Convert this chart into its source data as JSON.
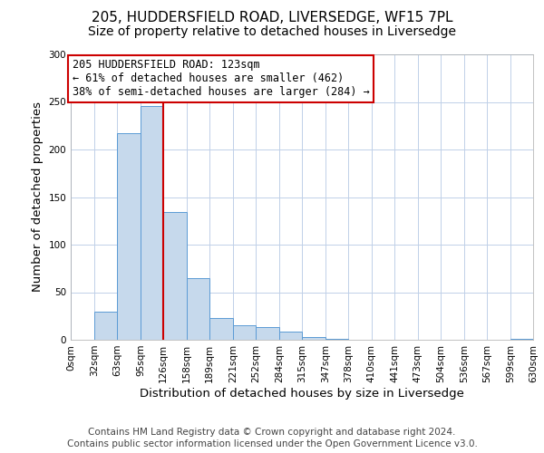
{
  "title": "205, HUDDERSFIELD ROAD, LIVERSEDGE, WF15 7PL",
  "subtitle": "Size of property relative to detached houses in Liversedge",
  "xlabel": "Distribution of detached houses by size in Liversedge",
  "ylabel": "Number of detached properties",
  "footer_line1": "Contains HM Land Registry data © Crown copyright and database right 2024.",
  "footer_line2": "Contains public sector information licensed under the Open Government Licence v3.0.",
  "bin_edges": [
    0,
    32,
    63,
    95,
    126,
    158,
    189,
    221,
    252,
    284,
    315,
    347,
    378,
    410,
    441,
    473,
    504,
    536,
    567,
    599,
    630
  ],
  "bin_counts": [
    0,
    30,
    217,
    246,
    134,
    65,
    23,
    15,
    13,
    9,
    3,
    1,
    0,
    0,
    0,
    0,
    0,
    0,
    0,
    1
  ],
  "bar_color": "#c6d9ec",
  "bar_edge_color": "#5b9bd5",
  "vline_x": 126,
  "vline_color": "#cc0000",
  "annotation_line1": "205 HUDDERSFIELD ROAD: 123sqm",
  "annotation_line2": "← 61% of detached houses are smaller (462)",
  "annotation_line3": "38% of semi-detached houses are larger (284) →",
  "annotation_box_color": "#cc0000",
  "ylim": [
    0,
    300
  ],
  "yticks": [
    0,
    50,
    100,
    150,
    200,
    250,
    300
  ],
  "tick_labels": [
    "0sqm",
    "32sqm",
    "63sqm",
    "95sqm",
    "126sqm",
    "158sqm",
    "189sqm",
    "221sqm",
    "252sqm",
    "284sqm",
    "315sqm",
    "347sqm",
    "378sqm",
    "410sqm",
    "441sqm",
    "473sqm",
    "504sqm",
    "536sqm",
    "567sqm",
    "599sqm",
    "630sqm"
  ],
  "background_color": "#ffffff",
  "grid_color": "#c0d0e8",
  "title_fontsize": 11,
  "subtitle_fontsize": 10,
  "axis_label_fontsize": 9.5,
  "tick_fontsize": 7.5,
  "annotation_fontsize": 8.5,
  "footer_fontsize": 7.5
}
